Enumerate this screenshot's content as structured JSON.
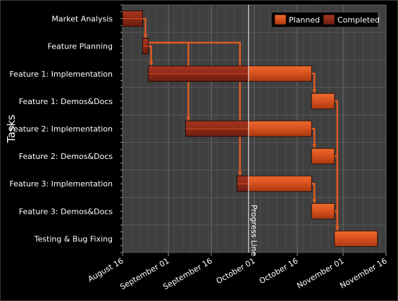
{
  "chart_data": {
    "type": "gantt",
    "title": "",
    "ylabel": "Tasks",
    "xlabel": "",
    "x_ticks": [
      "2010-08-16",
      "2010-09-01",
      "2010-09-16",
      "2010-10-01",
      "2010-10-16",
      "2010-11-01",
      "2010-11-16"
    ],
    "x_tick_labels": [
      "August 16",
      "September 01",
      "September 16",
      "October 01",
      "October 16",
      "November 01",
      "November 16"
    ],
    "xlim": [
      "2010-08-16",
      "2010-11-16"
    ],
    "grid": true,
    "legend_position": "top-right",
    "legend": [
      {
        "key": "planned",
        "label": "Planned",
        "color": "#d0501e"
      },
      {
        "key": "completed",
        "label": "Completed",
        "color": "#8a2a1a"
      }
    ],
    "colors": {
      "planned": "#d0501e",
      "completed": "#8a2a1a",
      "connector": "#e05a24",
      "progress_line": "#ffffff",
      "plot_bg": "#3f3f3f"
    },
    "progress_line": {
      "date": "2010-09-29",
      "label": "Progress Line"
    },
    "tasks": [
      {
        "name": "Market Analysis",
        "planned_start": "2010-08-16",
        "planned_end": "2010-08-23",
        "completed_start": "2010-08-16",
        "completed_end": "2010-08-23"
      },
      {
        "name": "Feature Planning",
        "planned_start": "2010-08-23",
        "planned_end": "2010-08-25",
        "completed_start": "2010-08-23",
        "completed_end": "2010-08-25"
      },
      {
        "name": "Feature 1: Implementation",
        "planned_start": "2010-08-25",
        "planned_end": "2010-10-21",
        "completed_start": "2010-08-25",
        "completed_end": "2010-09-29"
      },
      {
        "name": "Feature 1: Demos&Docs",
        "planned_start": "2010-10-21",
        "planned_end": "2010-10-29",
        "completed_start": null,
        "completed_end": null
      },
      {
        "name": "Feature 2: Implementation",
        "planned_start": "2010-09-07",
        "planned_end": "2010-10-21",
        "completed_start": "2010-09-07",
        "completed_end": "2010-09-29"
      },
      {
        "name": "Feature 2: Demos&Docs",
        "planned_start": "2010-10-21",
        "planned_end": "2010-10-29",
        "completed_start": null,
        "completed_end": null
      },
      {
        "name": "Feature 3: Implementation",
        "planned_start": "2010-09-25",
        "planned_end": "2010-10-21",
        "completed_start": "2010-09-25",
        "completed_end": "2010-09-29"
      },
      {
        "name": "Feature 3: Demos&Docs",
        "planned_start": "2010-10-21",
        "planned_end": "2010-10-29",
        "completed_start": null,
        "completed_end": null
      },
      {
        "name": "Testing & Bug Fixing",
        "planned_start": "2010-10-29",
        "planned_end": "2010-11-13",
        "completed_start": null,
        "completed_end": null
      }
    ],
    "links": [
      {
        "from": 0,
        "to": 1
      },
      {
        "from": 1,
        "to": 2
      },
      {
        "from": 1,
        "to": 4
      },
      {
        "from": 1,
        "to": 6
      },
      {
        "from": 2,
        "to": 3
      },
      {
        "from": 4,
        "to": 5
      },
      {
        "from": 6,
        "to": 7
      },
      {
        "from": 3,
        "to": 8
      },
      {
        "from": 5,
        "to": 8
      },
      {
        "from": 7,
        "to": 8
      }
    ]
  }
}
